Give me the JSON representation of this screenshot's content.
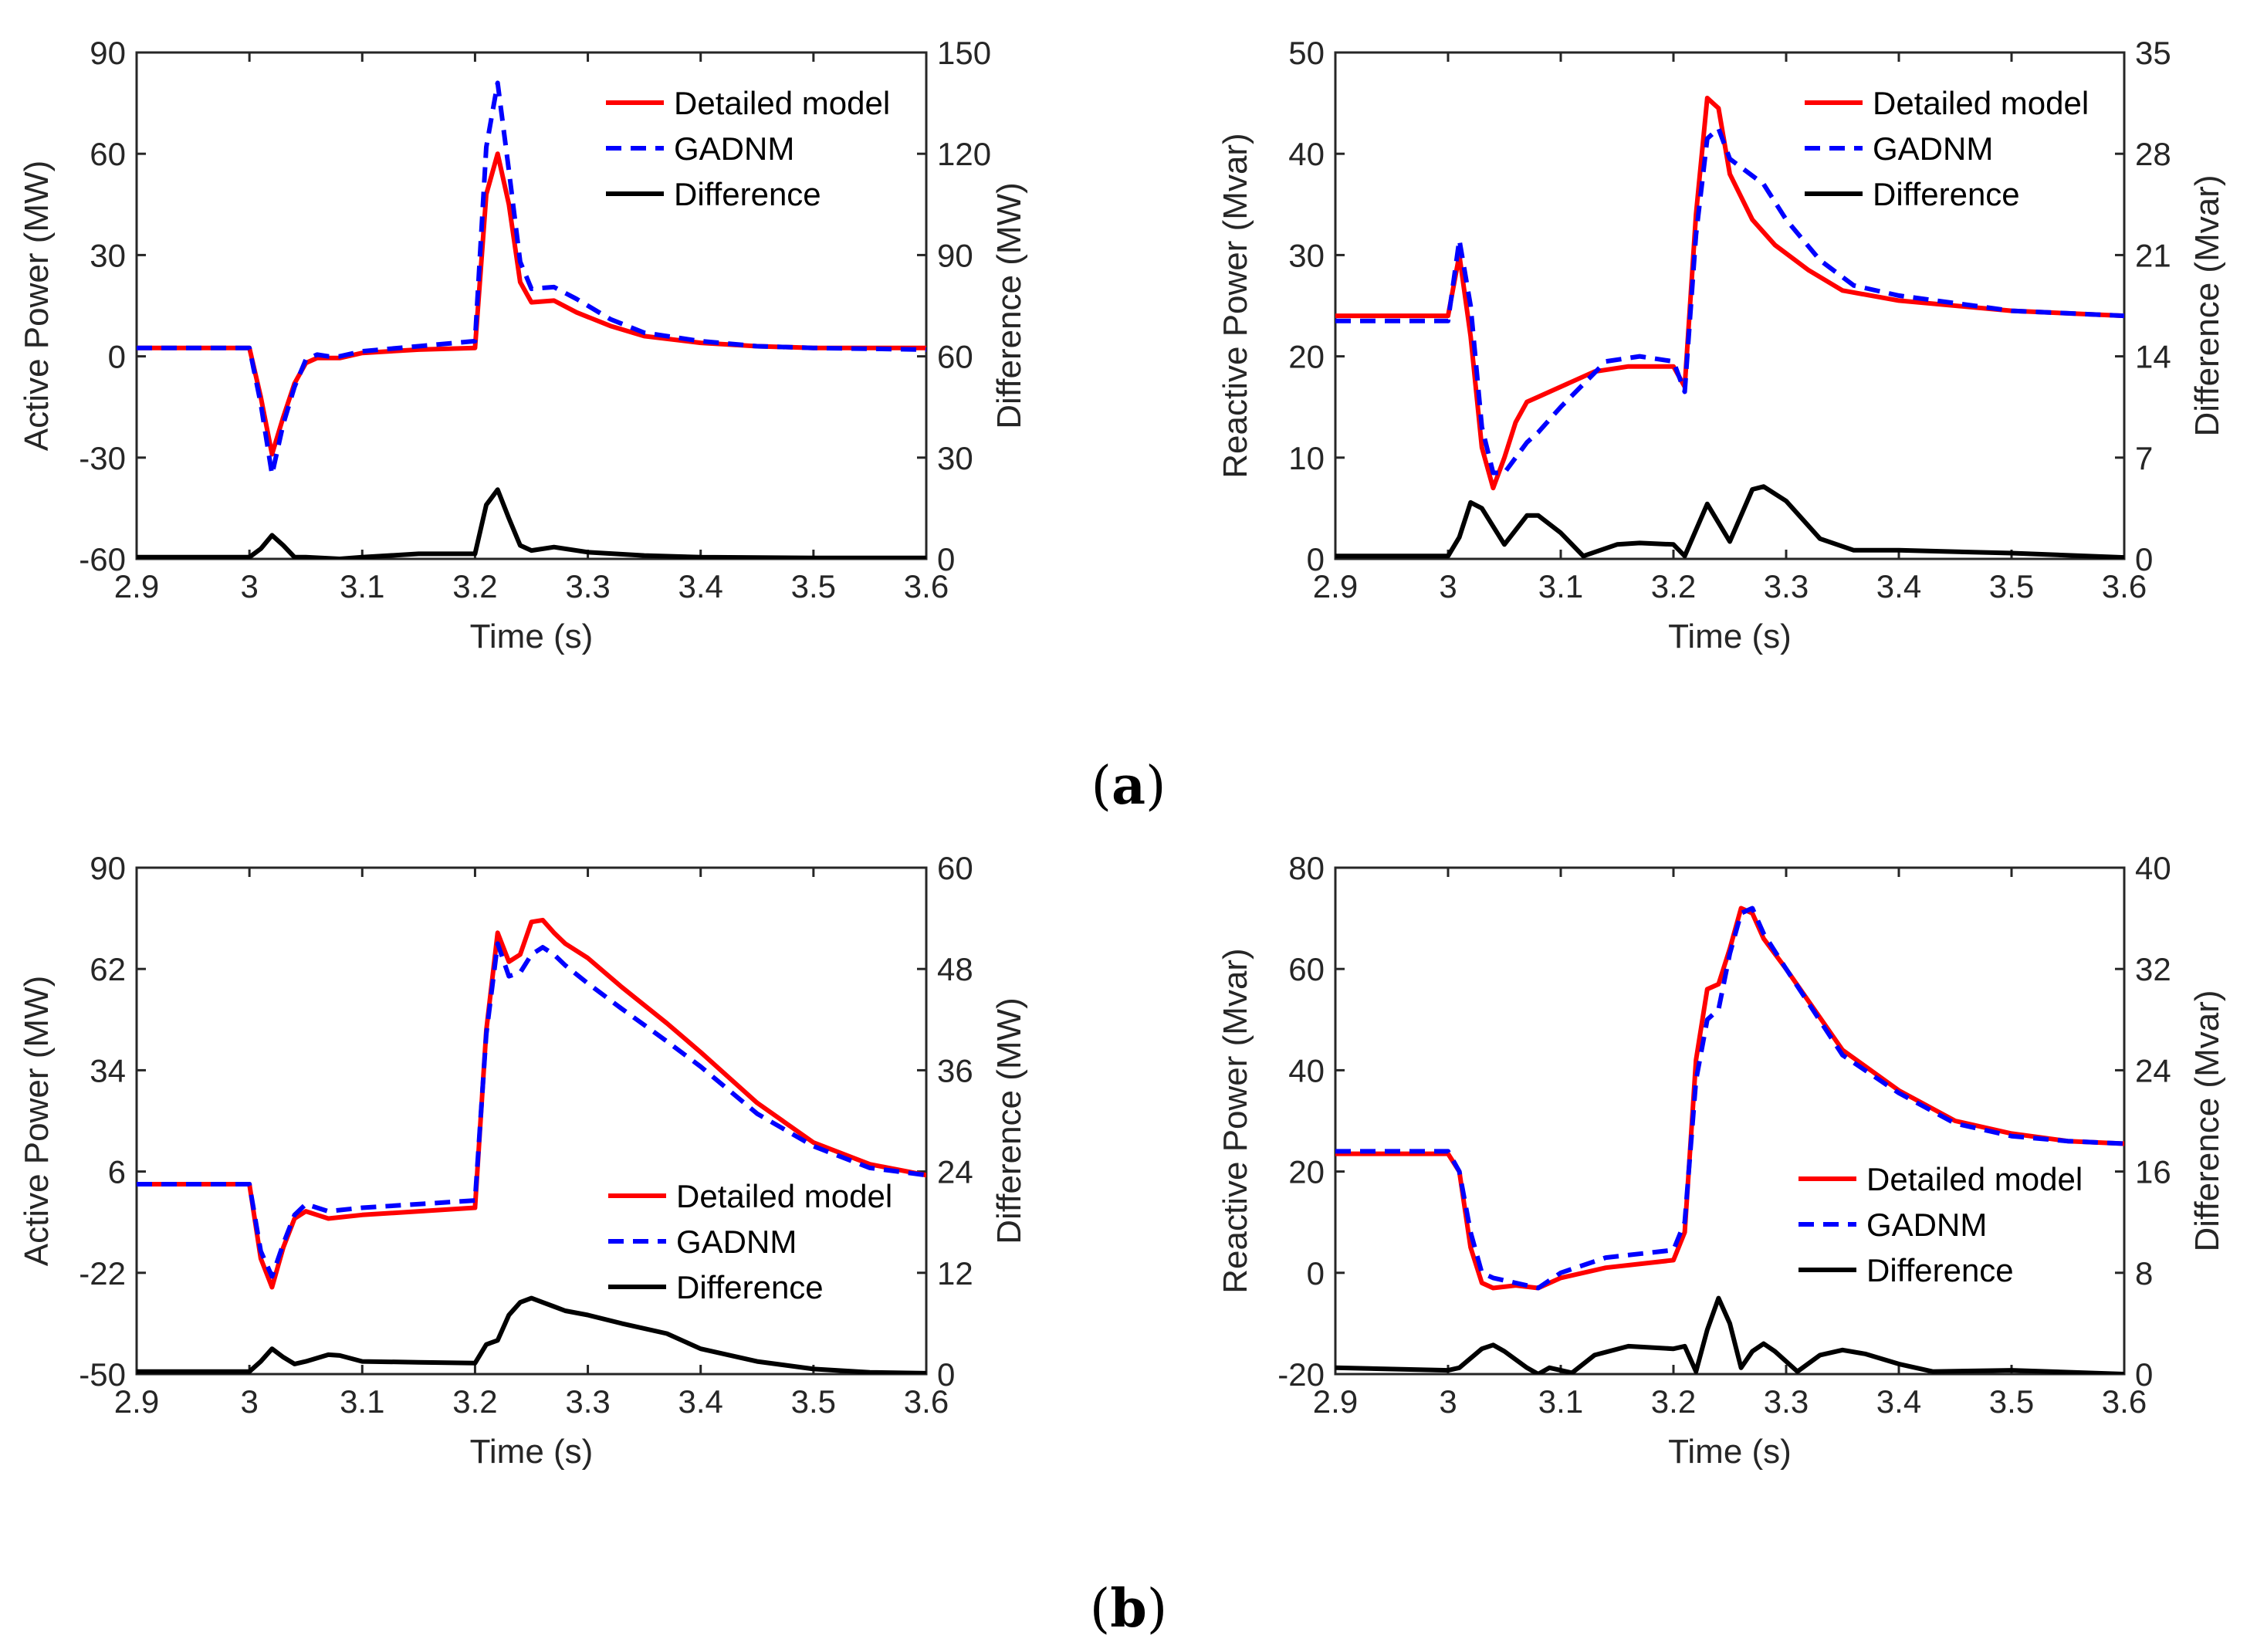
{
  "panel_labels": [
    {
      "open": "(",
      "letter": "a",
      "close": ")"
    },
    {
      "open": "(",
      "letter": "b",
      "close": ")"
    }
  ],
  "colors": {
    "detailed": "#ff0000",
    "gadnm": "#0000ff",
    "difference": "#000000",
    "axis": "#262626"
  },
  "chart_data": [
    {
      "type": "line",
      "panel": "a",
      "xlabel": "Time (s)",
      "ylabel": "Active Power (MW)",
      "y2label": "Difference (MW)",
      "xlim": [
        2.9,
        3.6
      ],
      "ylim": [
        -60,
        90
      ],
      "y2lim": [
        0,
        150
      ],
      "xticks": [
        2.9,
        3.0,
        3.1,
        3.2,
        3.3,
        3.4,
        3.5,
        3.6
      ],
      "xticklabels": [
        "2.9",
        "3",
        "3.1",
        "3.2",
        "3.3",
        "3.4",
        "3.5",
        "3.6"
      ],
      "yticks": [
        -60,
        -30,
        0,
        30,
        60,
        90
      ],
      "yticklabels": [
        "-60",
        "-30",
        "0",
        "30",
        "60",
        "90"
      ],
      "y2ticks": [
        0,
        30,
        60,
        90,
        120,
        150
      ],
      "y2ticklabels": [
        "0",
        "30",
        "60",
        "90",
        "120",
        "150"
      ],
      "legend_position": "top-right",
      "series": [
        {
          "name": "Detailed model",
          "style": "solid",
          "color": "#ff0000",
          "axis": "left",
          "x": [
            2.9,
            3.0,
            3.01,
            3.02,
            3.03,
            3.04,
            3.05,
            3.06,
            3.07,
            3.08,
            3.1,
            3.15,
            3.2,
            3.21,
            3.22,
            3.23,
            3.24,
            3.25,
            3.27,
            3.29,
            3.32,
            3.35,
            3.4,
            3.45,
            3.5,
            3.6
          ],
          "y": [
            2.5,
            2.5,
            -12,
            -29,
            -18,
            -8,
            -2,
            -0.5,
            -0.5,
            -0.5,
            1,
            2,
            2.5,
            48,
            60,
            45,
            22,
            16,
            16.5,
            13,
            9,
            6,
            4,
            3,
            2.5,
            2.5
          ]
        },
        {
          "name": "GADNM",
          "style": "dashed",
          "color": "#0000ff",
          "axis": "left",
          "x": [
            2.9,
            3.0,
            3.01,
            3.02,
            3.03,
            3.04,
            3.05,
            3.06,
            3.07,
            3.08,
            3.1,
            3.15,
            3.2,
            3.21,
            3.22,
            3.23,
            3.24,
            3.25,
            3.27,
            3.29,
            3.32,
            3.35,
            3.4,
            3.45,
            3.5,
            3.6
          ],
          "y": [
            2.5,
            2.5,
            -14,
            -35,
            -20,
            -9,
            -1,
            0.5,
            0,
            0,
            1.5,
            3,
            4.5,
            62,
            81,
            55,
            28,
            20,
            20.5,
            17,
            11,
            7,
            4.5,
            3,
            2.5,
            2
          ]
        },
        {
          "name": "Difference",
          "style": "solid",
          "color": "#000000",
          "axis": "right",
          "x": [
            2.9,
            3.0,
            3.01,
            3.02,
            3.03,
            3.04,
            3.05,
            3.08,
            3.1,
            3.15,
            3.2,
            3.21,
            3.22,
            3.23,
            3.24,
            3.25,
            3.27,
            3.3,
            3.35,
            3.4,
            3.5,
            3.6
          ],
          "y": [
            0.5,
            0.5,
            3,
            7,
            4,
            0.5,
            0.5,
            0,
            0.5,
            1.5,
            1.5,
            16,
            20.5,
            12,
            4,
            2.5,
            3.5,
            2,
            1,
            0.5,
            0.3,
            0.3
          ]
        }
      ]
    },
    {
      "type": "line",
      "panel": "a",
      "xlabel": "Time (s)",
      "ylabel": "Reactive Power (Mvar)",
      "y2label": "Difference (Mvar)",
      "xlim": [
        2.9,
        3.6
      ],
      "ylim": [
        0,
        50
      ],
      "y2lim": [
        0,
        35
      ],
      "xticks": [
        2.9,
        3.0,
        3.1,
        3.2,
        3.3,
        3.4,
        3.5,
        3.6
      ],
      "xticklabels": [
        "2.9",
        "3",
        "3.1",
        "3.2",
        "3.3",
        "3.4",
        "3.5",
        "3.6"
      ],
      "yticks": [
        0,
        10,
        20,
        30,
        40,
        50
      ],
      "yticklabels": [
        "0",
        "10",
        "20",
        "30",
        "40",
        "50"
      ],
      "y2ticks": [
        0,
        7,
        14,
        21,
        28,
        35
      ],
      "y2ticklabels": [
        "0",
        "7",
        "14",
        "21",
        "28",
        "35"
      ],
      "legend_position": "top-right",
      "series": [
        {
          "name": "Detailed model",
          "style": "solid",
          "color": "#ff0000",
          "axis": "left",
          "x": [
            2.9,
            3.0,
            3.01,
            3.02,
            3.03,
            3.04,
            3.05,
            3.06,
            3.07,
            3.08,
            3.1,
            3.13,
            3.16,
            3.2,
            3.21,
            3.22,
            3.23,
            3.24,
            3.25,
            3.27,
            3.29,
            3.32,
            3.35,
            3.4,
            3.5,
            3.6
          ],
          "y": [
            24,
            24,
            30,
            22,
            11,
            7,
            10,
            13.5,
            15.5,
            16,
            17,
            18.5,
            19,
            19,
            17,
            34,
            45.5,
            44.5,
            38,
            33.5,
            31,
            28.5,
            26.5,
            25.5,
            24.5,
            24
          ]
        },
        {
          "name": "GADNM",
          "style": "dashed",
          "color": "#0000ff",
          "axis": "left",
          "x": [
            2.9,
            3.0,
            3.01,
            3.02,
            3.03,
            3.04,
            3.05,
            3.06,
            3.07,
            3.08,
            3.1,
            3.14,
            3.17,
            3.2,
            3.21,
            3.22,
            3.23,
            3.24,
            3.25,
            3.28,
            3.3,
            3.33,
            3.36,
            3.4,
            3.5,
            3.6
          ],
          "y": [
            23.5,
            23.5,
            31.5,
            25,
            13,
            8.5,
            8.5,
            10,
            11.5,
            12.5,
            15,
            19.5,
            20,
            19.5,
            16.5,
            32,
            41.5,
            42.5,
            39.5,
            37,
            33.5,
            29.5,
            27,
            26,
            24.5,
            24
          ]
        },
        {
          "name": "Difference",
          "style": "solid",
          "color": "#000000",
          "axis": "right",
          "x": [
            2.9,
            3.0,
            3.01,
            3.02,
            3.03,
            3.05,
            3.07,
            3.08,
            3.1,
            3.12,
            3.15,
            3.17,
            3.2,
            3.21,
            3.22,
            3.23,
            3.25,
            3.27,
            3.28,
            3.3,
            3.33,
            3.36,
            3.4,
            3.5,
            3.6
          ],
          "y": [
            0.2,
            0.2,
            1.5,
            3.9,
            3.5,
            1,
            3,
            3,
            1.8,
            0.2,
            1,
            1.1,
            1,
            0.2,
            2,
            3.8,
            1.2,
            4.8,
            5,
            4,
            1.4,
            0.6,
            0.6,
            0.4,
            0.1
          ]
        }
      ]
    },
    {
      "type": "line",
      "panel": "b",
      "xlabel": "Time (s)",
      "ylabel": "Active Power (MW)",
      "y2label": "Difference (MW)",
      "xlim": [
        2.9,
        3.6
      ],
      "ylim": [
        -50,
        90
      ],
      "y2lim": [
        0,
        60
      ],
      "xticks": [
        2.9,
        3.0,
        3.1,
        3.2,
        3.3,
        3.4,
        3.5,
        3.6
      ],
      "xticklabels": [
        "2.9",
        "3",
        "3.1",
        "3.2",
        "3.3",
        "3.4",
        "3.5",
        "3.6"
      ],
      "yticks": [
        -50,
        -22,
        6,
        34,
        62,
        90
      ],
      "yticklabels": [
        "-50",
        "-22",
        "6",
        "34",
        "62",
        "90"
      ],
      "y2ticks": [
        0,
        12,
        24,
        36,
        48,
        60
      ],
      "y2ticklabels": [
        "0",
        "12",
        "24",
        "36",
        "48",
        "60"
      ],
      "legend_position": "bottom-right",
      "series": [
        {
          "name": "Detailed model",
          "style": "solid",
          "color": "#ff0000",
          "axis": "left",
          "x": [
            2.9,
            3.0,
            3.01,
            3.02,
            3.03,
            3.04,
            3.05,
            3.06,
            3.07,
            3.1,
            3.2,
            3.21,
            3.22,
            3.23,
            3.24,
            3.25,
            3.26,
            3.27,
            3.28,
            3.3,
            3.33,
            3.37,
            3.4,
            3.45,
            3.5,
            3.55,
            3.6
          ],
          "y": [
            2.5,
            2.5,
            -18,
            -26,
            -15,
            -7,
            -5,
            -6,
            -7,
            -6,
            -4,
            45,
            72,
            64,
            66,
            75,
            75.5,
            72,
            69,
            65,
            57,
            47,
            39,
            25,
            14,
            8,
            5
          ]
        },
        {
          "name": "GADNM",
          "style": "dashed",
          "color": "#0000ff",
          "axis": "left",
          "x": [
            2.9,
            3.0,
            3.01,
            3.02,
            3.03,
            3.04,
            3.05,
            3.06,
            3.07,
            3.1,
            3.2,
            3.21,
            3.22,
            3.23,
            3.24,
            3.25,
            3.26,
            3.27,
            3.28,
            3.3,
            3.33,
            3.37,
            3.4,
            3.45,
            3.5,
            3.55,
            3.6
          ],
          "y": [
            2.5,
            2.5,
            -16,
            -23,
            -14,
            -6,
            -3,
            -4,
            -5,
            -4,
            -2,
            44,
            69,
            60,
            61,
            66,
            68,
            66,
            63,
            58,
            51,
            42,
            35,
            22,
            13,
            7,
            5
          ]
        },
        {
          "name": "Difference",
          "style": "solid",
          "color": "#000000",
          "axis": "right",
          "x": [
            2.9,
            3.0,
            3.01,
            3.02,
            3.03,
            3.04,
            3.05,
            3.07,
            3.08,
            3.1,
            3.15,
            3.2,
            3.21,
            3.22,
            3.23,
            3.24,
            3.25,
            3.26,
            3.27,
            3.28,
            3.3,
            3.33,
            3.37,
            3.4,
            3.45,
            3.5,
            3.55,
            3.6
          ],
          "y": [
            0.3,
            0.3,
            1.5,
            3,
            2,
            1.2,
            1.5,
            2.3,
            2.2,
            1.5,
            1.4,
            1.3,
            3.5,
            4,
            7,
            8.5,
            9,
            8.5,
            8,
            7.5,
            7,
            6,
            4.8,
            3,
            1.5,
            0.6,
            0.2,
            0.1
          ]
        }
      ]
    },
    {
      "type": "line",
      "panel": "b",
      "xlabel": "Time (s)",
      "ylabel": "Reactive Power (Mvar)",
      "y2label": "Difference (Mvar)",
      "xlim": [
        2.9,
        3.6
      ],
      "ylim": [
        -20,
        80
      ],
      "y2lim": [
        0,
        40
      ],
      "xticks": [
        2.9,
        3.0,
        3.1,
        3.2,
        3.3,
        3.4,
        3.5,
        3.6
      ],
      "xticklabels": [
        "2.9",
        "3",
        "3.1",
        "3.2",
        "3.3",
        "3.4",
        "3.5",
        "3.6"
      ],
      "yticks": [
        -20,
        0,
        20,
        40,
        60,
        80
      ],
      "yticklabels": [
        "-20",
        "0",
        "20",
        "40",
        "60",
        "80"
      ],
      "y2ticks": [
        0,
        8,
        16,
        24,
        32,
        40
      ],
      "y2ticklabels": [
        "0",
        "8",
        "16",
        "24",
        "32",
        "40"
      ],
      "legend_position": "bottom-right",
      "series": [
        {
          "name": "Detailed model",
          "style": "solid",
          "color": "#ff0000",
          "axis": "left",
          "x": [
            2.9,
            3.0,
            3.01,
            3.02,
            3.03,
            3.04,
            3.06,
            3.08,
            3.1,
            3.14,
            3.2,
            3.21,
            3.22,
            3.23,
            3.24,
            3.25,
            3.26,
            3.27,
            3.28,
            3.3,
            3.35,
            3.4,
            3.45,
            3.5,
            3.55,
            3.6
          ],
          "y": [
            23.5,
            23.5,
            20,
            5,
            -2,
            -3,
            -2.5,
            -3,
            -1,
            1,
            2.5,
            8,
            42,
            56,
            57,
            64,
            72,
            71,
            66,
            60,
            44,
            36,
            30,
            27.5,
            26,
            25.5
          ]
        },
        {
          "name": "GADNM",
          "style": "dashed",
          "color": "#0000ff",
          "axis": "left",
          "x": [
            2.9,
            3.0,
            3.01,
            3.02,
            3.03,
            3.04,
            3.06,
            3.08,
            3.1,
            3.14,
            3.2,
            3.21,
            3.22,
            3.23,
            3.24,
            3.25,
            3.26,
            3.27,
            3.28,
            3.3,
            3.35,
            3.4,
            3.45,
            3.5,
            3.55,
            3.6
          ],
          "y": [
            24,
            24,
            20,
            8,
            0,
            -1,
            -2,
            -3,
            0,
            3,
            4.5,
            10,
            38,
            50,
            52,
            63,
            71,
            72,
            67,
            60,
            43,
            35.5,
            29.5,
            27,
            26,
            25.5
          ]
        },
        {
          "name": "Difference",
          "style": "solid",
          "color": "#000000",
          "axis": "right",
          "x": [
            2.9,
            3.0,
            3.01,
            3.03,
            3.04,
            3.05,
            3.07,
            3.08,
            3.09,
            3.1,
            3.11,
            3.13,
            3.16,
            3.2,
            3.21,
            3.22,
            3.23,
            3.24,
            3.25,
            3.26,
            3.27,
            3.28,
            3.29,
            3.31,
            3.33,
            3.35,
            3.37,
            3.4,
            3.43,
            3.5,
            3.6
          ],
          "y": [
            0.5,
            0.3,
            0.5,
            2,
            2.3,
            1.8,
            0.5,
            0,
            0.5,
            0.3,
            0.1,
            1.5,
            2.2,
            2,
            2.2,
            0.2,
            3.5,
            6,
            4,
            0.5,
            1.8,
            2.4,
            1.8,
            0.2,
            1.5,
            1.9,
            1.6,
            0.8,
            0.2,
            0.3,
            0
          ]
        }
      ]
    }
  ]
}
